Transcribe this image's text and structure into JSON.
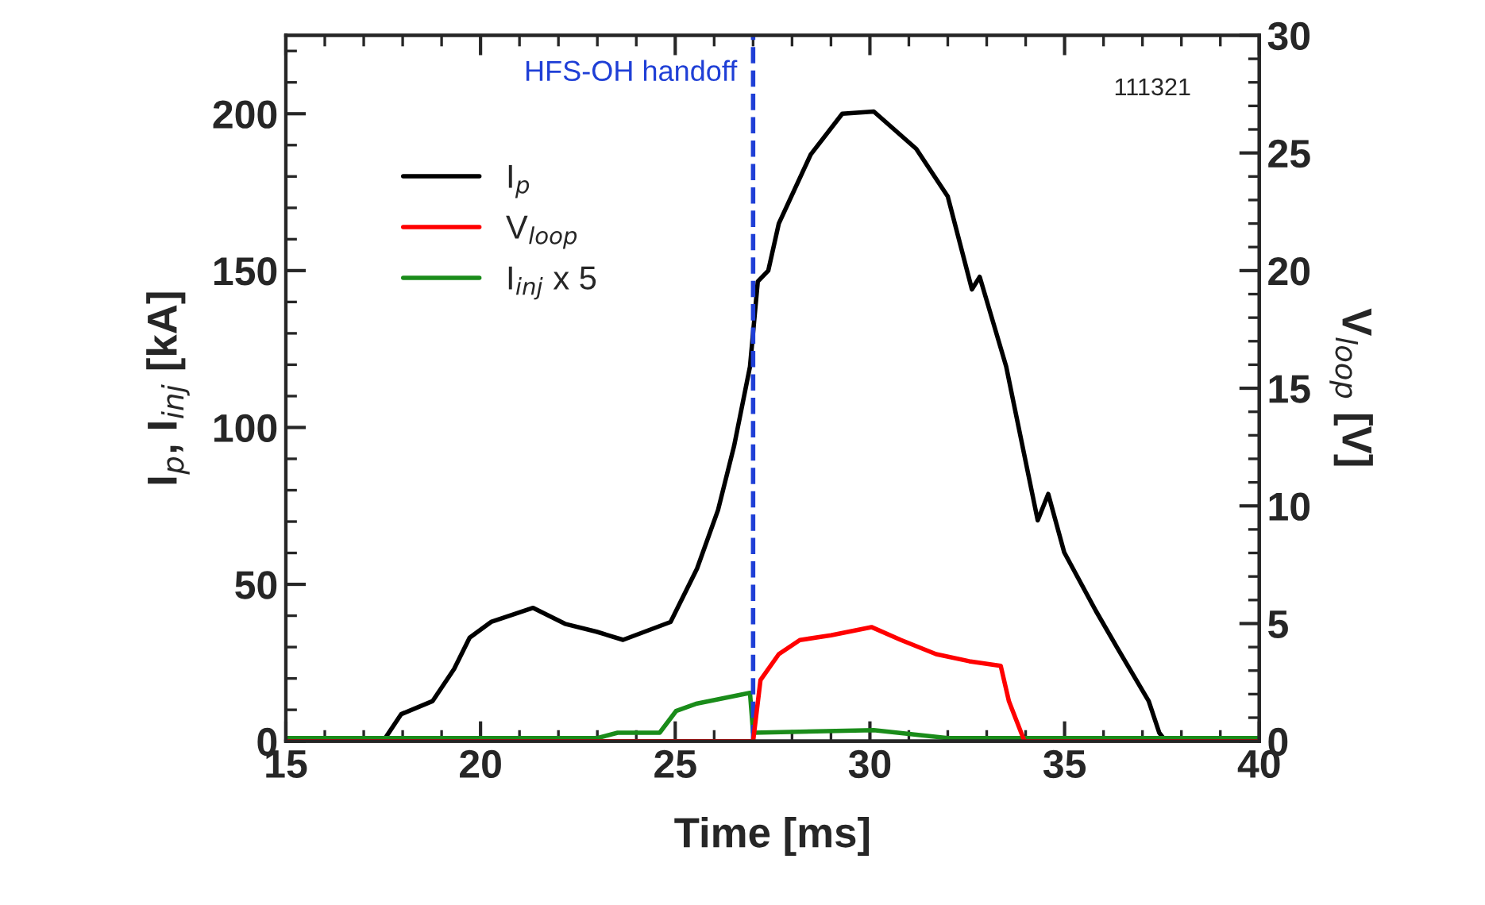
{
  "chart_data": {
    "type": "line",
    "xlabel": "Time [ms]",
    "ylabel": "I$_{p}$, I$_{inj}$ [kA]",
    "y2label": "V$_{loop}$ [V]",
    "xlim": [
      15,
      40
    ],
    "xticks": [
      15,
      20,
      25,
      30,
      35,
      40
    ],
    "ylim": [
      0,
      225
    ],
    "yticks": [
      0,
      50,
      100,
      150,
      200
    ],
    "y2lim": [
      0,
      30
    ],
    "y2ticks": [
      0,
      5,
      10,
      15,
      20,
      25,
      30
    ],
    "legend": "top left",
    "grid": false,
    "marker": "none",
    "line_style": "solid",
    "series": [
      {
        "name": "I$_{p}$",
        "color": "#000000",
        "x": [
          15,
          17.5,
          17.96,
          18.77,
          19.32,
          19.72,
          20.27,
          21.35,
          22.17,
          22.98,
          23.66,
          24.88,
          25.56,
          26.1,
          26.51,
          26.92,
          27.12,
          27.39,
          27.66,
          28.48,
          29.29,
          30.1,
          31.19,
          32.0,
          32.62,
          32.82,
          33.5,
          34.31,
          34.58,
          34.99,
          35.8,
          36.35,
          37.16,
          37.43,
          37.6,
          40
        ],
        "values": [
          0,
          0,
          8.6,
          12.8,
          23,
          33,
          38,
          42.5,
          37.4,
          34.9,
          32.3,
          38,
          55,
          73.7,
          94,
          119.4,
          146.5,
          150,
          165,
          187,
          200,
          200.7,
          188.8,
          173.6,
          144,
          148,
          119.4,
          70.4,
          78.8,
          60.2,
          41.6,
          29.8,
          12.8,
          2.7,
          0,
          0
        ]
      },
      {
        "name": "V$_{loop}$",
        "color": "#ff0000",
        "axis": "y2",
        "x": [
          15,
          27.0,
          27.19,
          27.66,
          28.2,
          29.0,
          30.04,
          30.8,
          31.7,
          32.55,
          33.36,
          33.57,
          33.97,
          40
        ],
        "values": [
          0,
          0,
          2.6,
          3.7,
          4.3,
          4.5,
          4.85,
          4.3,
          3.7,
          3.4,
          3.2,
          1.7,
          0,
          0
        ]
      },
      {
        "name": "I$_{inj}$ x 5",
        "color": "#1a8c1a",
        "x": [
          15,
          23.0,
          23.52,
          24.6,
          25.02,
          25.56,
          26.92,
          27.0,
          30.1,
          32.0,
          40
        ],
        "values": [
          1,
          1,
          2.7,
          2.7,
          9.6,
          12,
          15.4,
          2.7,
          3.5,
          1,
          1
        ]
      }
    ],
    "ref_lines": [
      {
        "axis": "x",
        "value": 27,
        "label": "HFS-OH handoff",
        "color": "#1f3fd6",
        "line_style": "dashed"
      }
    ],
    "annotations": [
      "111321"
    ]
  }
}
